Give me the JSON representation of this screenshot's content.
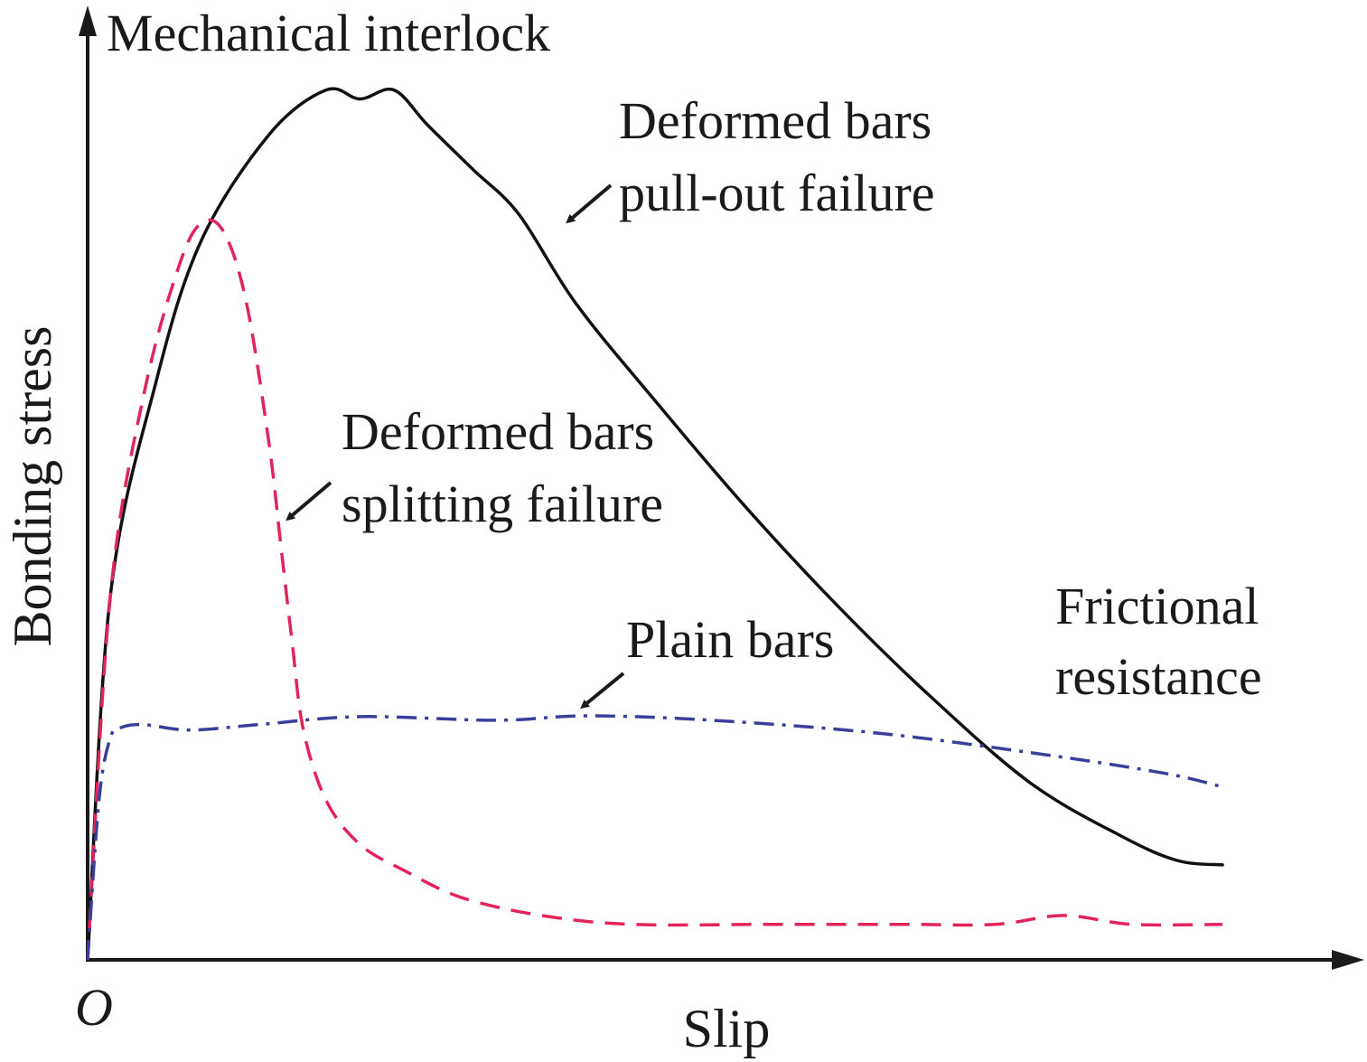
{
  "chart_data": {
    "type": "line",
    "title": "",
    "xlabel": "Slip",
    "ylabel": "Bonding stress",
    "origin_label": "O",
    "xlim": [
      0,
      1
    ],
    "ylim": [
      0,
      1
    ],
    "grid": false,
    "legend": "none",
    "axis_ticks": "none",
    "series": [
      {
        "key": "pullout",
        "style": "solid",
        "color": "#111111",
        "x": [
          0.0,
          0.02,
          0.06,
          0.1,
          0.16,
          0.21,
          0.24,
          0.27,
          0.3,
          0.34,
          0.38,
          0.43,
          0.5,
          0.58,
          0.66,
          0.74,
          0.83,
          0.91,
          0.96,
          1.0
        ],
        "y": [
          0.0,
          0.41,
          0.65,
          0.81,
          0.93,
          0.98,
          0.97,
          0.98,
          0.94,
          0.89,
          0.84,
          0.74,
          0.63,
          0.51,
          0.4,
          0.3,
          0.2,
          0.14,
          0.112,
          0.107
        ]
      },
      {
        "key": "splitting",
        "style": "dashed",
        "color": "#e3245a",
        "x": [
          0.0,
          0.02,
          0.05,
          0.08,
          0.1,
          0.12,
          0.14,
          0.16,
          0.17,
          0.18,
          0.19,
          0.21,
          0.24,
          0.28,
          0.33,
          0.4,
          0.48,
          0.6,
          0.72,
          0.8,
          0.86,
          0.92,
          1.0
        ],
        "y": [
          0.0,
          0.41,
          0.64,
          0.78,
          0.83,
          0.82,
          0.74,
          0.58,
          0.47,
          0.36,
          0.26,
          0.18,
          0.13,
          0.1,
          0.07,
          0.05,
          0.04,
          0.04,
          0.04,
          0.04,
          0.05,
          0.04,
          0.04
        ]
      },
      {
        "key": "plain",
        "style": "dash-dot",
        "color": "#3a3f9a",
        "x": [
          0.0,
          0.01,
          0.02,
          0.03,
          0.05,
          0.09,
          0.15,
          0.24,
          0.36,
          0.44,
          0.55,
          0.7,
          0.85,
          0.95,
          1.0
        ],
        "y": [
          0.0,
          0.18,
          0.25,
          0.262,
          0.265,
          0.259,
          0.265,
          0.274,
          0.27,
          0.275,
          0.27,
          0.255,
          0.23,
          0.21,
          0.195
        ]
      }
    ],
    "annotations": [
      {
        "key": "mechanical",
        "lines": [
          "Mechanical interlock"
        ]
      },
      {
        "key": "pullout",
        "lines": [
          "Deformed bars",
          "pull-out failure"
        ]
      },
      {
        "key": "splitting",
        "lines": [
          "Deformed bars",
          "splitting failure"
        ]
      },
      {
        "key": "plain",
        "lines": [
          "Plain bars"
        ]
      },
      {
        "key": "frictional",
        "lines": [
          "Frictional",
          "resistance"
        ]
      }
    ]
  }
}
